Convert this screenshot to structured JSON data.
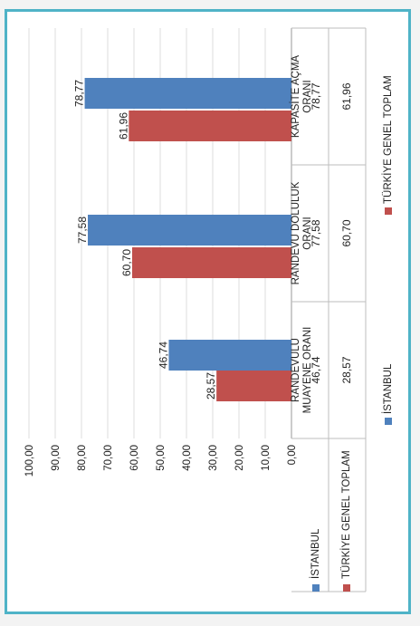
{
  "chart_data": {
    "type": "bar",
    "orientation": "rotated 90° clockwise (bars extend leftward from the 0 baseline)",
    "title": "",
    "xlabel": "",
    "ylabel": "",
    "ylim": [
      0,
      100
    ],
    "y_ticks": [
      "0,00",
      "10,00",
      "20,00",
      "30,00",
      "40,00",
      "50,00",
      "60,00",
      "70,00",
      "80,00",
      "90,00",
      "100,00"
    ],
    "grid": true,
    "legend_position": "bottom",
    "categories": [
      "KAPASİTE AÇMA ORANI",
      "RANDEVU DOLULUK ORANI",
      "RANDEVULU MUAYENE ORANI"
    ],
    "category_lines": [
      [
        "KAPASİTE AÇMA",
        "ORANI"
      ],
      [
        "RANDEVU DOLULUK",
        "ORANI"
      ],
      [
        "RANDEVULU",
        "MUAYENE ORANI"
      ]
    ],
    "series": [
      {
        "name": "İSTANBUL",
        "color": "#4f81bd",
        "values": [
          78.77,
          77.58,
          46.74
        ],
        "labels": [
          "78,77",
          "77,58",
          "46,74"
        ]
      },
      {
        "name": "TÜRKİYE GENEL TOPLAM",
        "color": "#c0504d",
        "values": [
          61.96,
          60.7,
          28.57
        ],
        "labels": [
          "61,96",
          "60,70",
          "28,57"
        ]
      }
    ]
  }
}
